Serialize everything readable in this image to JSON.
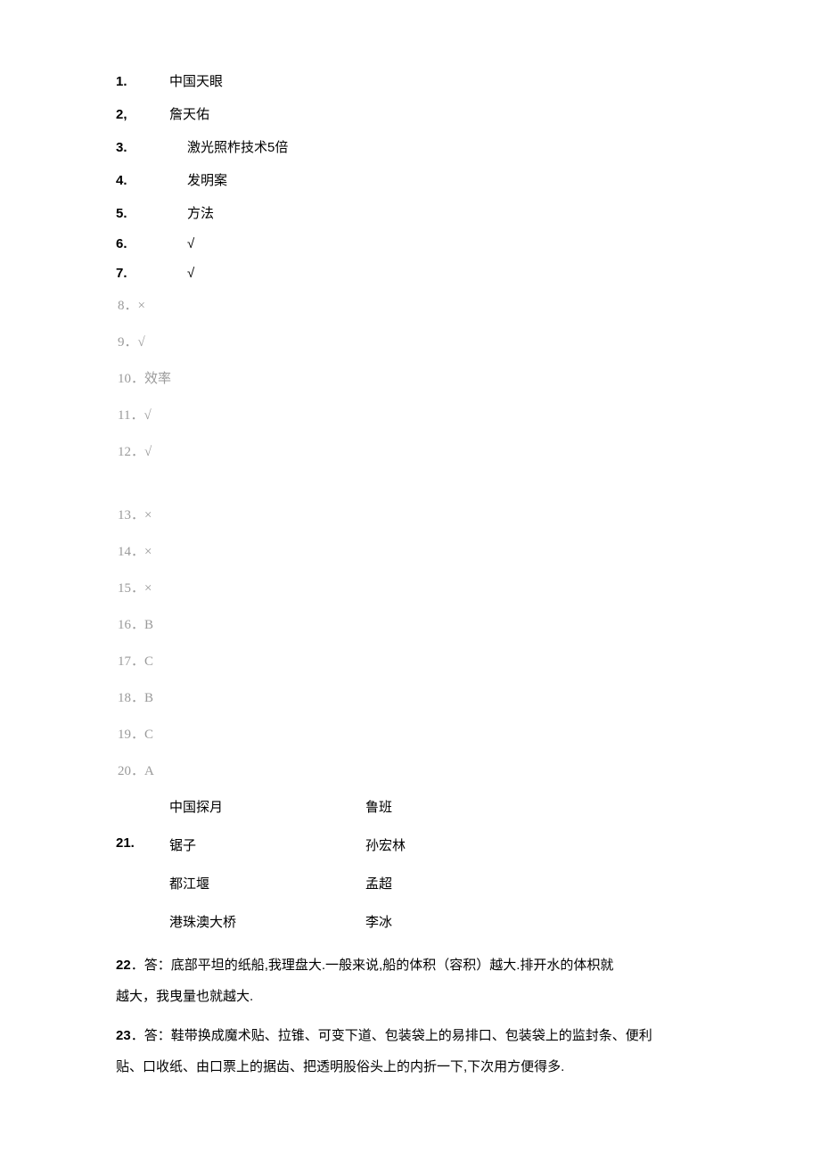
{
  "simple_answers": [
    {
      "num": "1.",
      "text": "中国天眼",
      "bold_num": true,
      "num_class": "num"
    },
    {
      "num": "2,",
      "text": "詹天佑",
      "bold_num": true,
      "num_class": "num"
    },
    {
      "num": "3.",
      "text": "激光照柞技术5倍",
      "bold_num": true,
      "num_class": "num-wide"
    },
    {
      "num": "4.",
      "text": "发明案",
      "bold_num": true,
      "num_class": "num-wide"
    },
    {
      "num": "5.",
      "text": "方法",
      "bold_num": true,
      "num_class": "num-wide"
    },
    {
      "num": "6.",
      "text": "√",
      "bold_num": true,
      "num_class": "num-wide"
    },
    {
      "num": "7.",
      "text": "√",
      "bold_num": true,
      "num_class": "num-wide"
    }
  ],
  "gray_answers_1": [
    "8．×",
    "9．√",
    "10．效率",
    "11．√",
    "12．√"
  ],
  "gray_answers_2": [
    "13．×",
    "14．×",
    "15．×",
    "16．B",
    "17．C",
    "18．B",
    "19．C",
    "20．A"
  ],
  "match": {
    "num": "21.",
    "rows": [
      {
        "left": "中国探月",
        "right": "鲁班"
      },
      {
        "left": "锯子",
        "right": "孙宏林"
      },
      {
        "left": "都江堰",
        "right": "孟超"
      },
      {
        "left": "港珠澳大桥",
        "right": "李冰"
      }
    ]
  },
  "para22": {
    "num": "22",
    "line1": "．答：底部平坦的纸船,我理盘大.一般来说,船的体积（容积）越大.排开水的体枳就",
    "line2": "越大，我曳量也就越大."
  },
  "para23": {
    "num": "23",
    "line1": "．答：鞋带换成魔术贴、拉锥、可变下道、包装袋上的易排口、包装袋上的监封条、便利",
    "line2": "贴、口收纸、由口票上的据齿、把透明股俗头上的内折一下,下次用方便得多."
  }
}
